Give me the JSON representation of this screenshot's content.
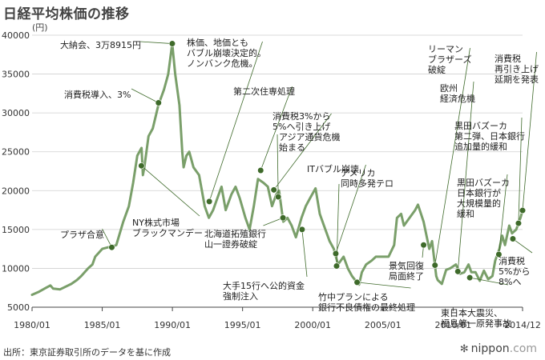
{
  "header": {
    "title": "日経平均株価の推移",
    "unit": "(円)"
  },
  "footer": {
    "source": "出所：東京証券取引所のデータを基に作成",
    "logo": "nippon",
    "logo_domain": ".com"
  },
  "colors": {
    "line": "#7a9f6a",
    "marker": "#3e6a2a",
    "grid": "#cfcfcf",
    "axis": "#444444"
  },
  "chart_data": {
    "type": "line",
    "title": "日経平均株価の推移",
    "ylabel": "(円)",
    "xlabel": "",
    "xlim": [
      1980.0,
      2014.95
    ],
    "ylim": [
      5000,
      40000
    ],
    "yticks": [
      5000,
      10000,
      15000,
      20000,
      25000,
      30000,
      35000,
      40000
    ],
    "xticks": [
      {
        "value": 1980.0,
        "label": "1980/01"
      },
      {
        "value": 1985.0,
        "label": "1985/01"
      },
      {
        "value": 1990.0,
        "label": "1990/01"
      },
      {
        "value": 1995.0,
        "label": "1995/01"
      },
      {
        "value": 2000.0,
        "label": "2000/01"
      },
      {
        "value": 2005.0,
        "label": "2005/01"
      },
      {
        "value": 2010.0,
        "label": "2010/01"
      },
      {
        "value": 2014.95,
        "label": "2014/12"
      }
    ],
    "series": [
      {
        "name": "日経平均株価",
        "x": [
          1980.0,
          1980.5,
          1981.0,
          1981.3,
          1981.5,
          1982.0,
          1982.8,
          1983.2,
          1983.5,
          1984.0,
          1984.3,
          1984.5,
          1985.0,
          1985.4,
          1985.7,
          1986.0,
          1986.5,
          1986.9,
          1987.2,
          1987.5,
          1987.8,
          1987.9,
          1988.0,
          1988.3,
          1988.6,
          1989.0,
          1989.4,
          1989.7,
          1989.99,
          1990.2,
          1990.5,
          1990.7,
          1990.8,
          1991.0,
          1991.2,
          1991.5,
          1991.9,
          1992.3,
          1992.6,
          1992.9,
          1993.2,
          1993.5,
          1993.8,
          1994.2,
          1994.5,
          1994.8,
          1995.2,
          1995.5,
          1995.8,
          1996.1,
          1996.5,
          1996.8,
          1997.1,
          1997.4,
          1997.6,
          1997.9,
          1998.2,
          1998.5,
          1998.8,
          1999.2,
          1999.5,
          1999.8,
          2000.2,
          2000.5,
          2000.8,
          2001.2,
          2001.5,
          2001.8,
          2002.2,
          2002.5,
          2002.8,
          2003.1,
          2003.3,
          2003.5,
          2003.8,
          2004.2,
          2004.5,
          2004.9,
          2005.4,
          2005.8,
          2006.0,
          2006.3,
          2006.5,
          2006.9,
          2007.3,
          2007.5,
          2007.9,
          2008.3,
          2008.5,
          2008.8,
          2008.9,
          2009.2,
          2009.5,
          2009.8,
          2010.2,
          2010.5,
          2010.8,
          2011.1,
          2011.3,
          2011.6,
          2011.9,
          2012.2,
          2012.5,
          2012.8,
          2013.0,
          2013.3,
          2013.5,
          2013.7,
          2014.0,
          2014.2,
          2014.5,
          2014.8,
          2014.95
        ],
        "values": [
          6600,
          7000,
          7500,
          7800,
          7400,
          7300,
          8000,
          8500,
          9000,
          10000,
          10500,
          11500,
          12500,
          12700,
          12800,
          13000,
          16000,
          18000,
          21000,
          24500,
          25500,
          22000,
          23000,
          27000,
          28000,
          31000,
          33000,
          35000,
          38915,
          35000,
          31000,
          25000,
          23000,
          24500,
          25000,
          23000,
          22000,
          18000,
          16500,
          17500,
          19000,
          20500,
          17500,
          19500,
          20500,
          19000,
          16500,
          15000,
          18000,
          21500,
          21000,
          20500,
          18000,
          19500,
          20000,
          16000,
          16500,
          15500,
          14000,
          16500,
          18000,
          19000,
          20300,
          17000,
          15500,
          13500,
          12500,
          10500,
          11500,
          10000,
          9000,
          8300,
          7900,
          9500,
          10500,
          11000,
          11500,
          11500,
          11500,
          13000,
          16500,
          17000,
          15500,
          16500,
          17500,
          18200,
          16000,
          12500,
          13500,
          9000,
          8500,
          8000,
          9800,
          10000,
          10500,
          9300,
          9500,
          10500,
          9500,
          9500,
          8400,
          9700,
          8600,
          9000,
          11000,
          12500,
          14200,
          13000,
          15500,
          14500,
          15000,
          16500,
          17450
        ]
      }
    ],
    "annotations": [
      {
        "x": 1985.68,
        "y": 12700,
        "text": "プラザ合意"
      },
      {
        "x": 1987.79,
        "y": 23200,
        "text": "NY株式市場\nブラックマンデー"
      },
      {
        "x": 1989.01,
        "y": 31300,
        "text": "消費税導入、3%"
      },
      {
        "x": 1989.99,
        "y": 38915,
        "text": "大納会、3万8915円"
      },
      {
        "x": 1992.63,
        "y": 18600,
        "text": "株価、地価とも\nバブル崩壊決定的。\nノンバンク危機。"
      },
      {
        "x": 1996.29,
        "y": 22600,
        "text": "第二次住専処理"
      },
      {
        "x": 1997.23,
        "y": 20100,
        "text": "消費税3%から\n5%へ引き上げ"
      },
      {
        "x": 1997.54,
        "y": 19200,
        "text": "アジア通貨危機\n始まる"
      },
      {
        "x": 1997.88,
        "y": 16500,
        "text": "北海道拓殖銀行\n山一證券破綻"
      },
      {
        "x": 1999.24,
        "y": 15000,
        "text": "大手15行へ公的資金\n強制注入"
      },
      {
        "x": 2001.64,
        "y": 11900,
        "text": "ITバブル崩壊"
      },
      {
        "x": 2001.7,
        "y": 10300,
        "text": "アメリカ\n同時多発テロ"
      },
      {
        "x": 2003.16,
        "y": 8200,
        "text": "竹中プランによる\n銀行不良債権の最終処理"
      },
      {
        "x": 2007.9,
        "y": 13000,
        "text": "景気回復\n局面終了"
      },
      {
        "x": 2008.71,
        "y": 10400,
        "text": "リーマン\nブラザーズ\n破綻"
      },
      {
        "x": 2010.34,
        "y": 9600,
        "text": "欧州\n経済危機"
      },
      {
        "x": 2011.19,
        "y": 8800,
        "text": "東日本大震災、\n福島第一原発事故"
      },
      {
        "x": 2013.26,
        "y": 11800,
        "text": "黒田バズーカ\n日本銀行が\n大規模量的\n緩和"
      },
      {
        "x": 2014.26,
        "y": 13800,
        "text": "消費税\n5%から\n8%へ"
      },
      {
        "x": 2014.66,
        "y": 15800,
        "text": "黒田バズーカ\n第二弾、日本銀行\n追加量的緩和"
      },
      {
        "x": 2014.95,
        "y": 17450,
        "text": "消費税\n再引き上げ\n延期を発表"
      }
    ]
  }
}
